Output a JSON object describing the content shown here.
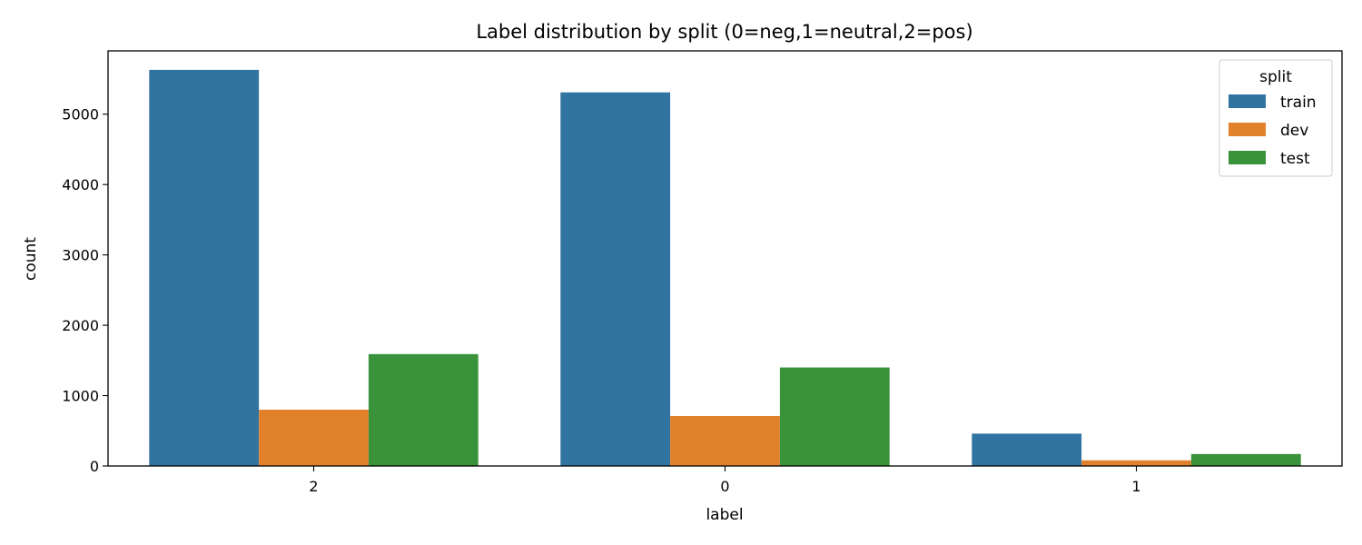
{
  "chart_data": {
    "type": "bar",
    "title": "Label distribution by split (0=neg,1=neutral,2=pos)",
    "xlabel": "label",
    "ylabel": "count",
    "categories": [
      "2",
      "0",
      "1"
    ],
    "ylim": [
      0,
      5900
    ],
    "yticks": [
      0,
      1000,
      2000,
      3000,
      4000,
      5000
    ],
    "legend_title": "split",
    "legend_position": "top-right",
    "series": [
      {
        "name": "train",
        "color": "#3274a1",
        "values": [
          5630,
          5310,
          460
        ]
      },
      {
        "name": "dev",
        "color": "#e1812c",
        "values": [
          800,
          710,
          80
        ]
      },
      {
        "name": "test",
        "color": "#3a923a",
        "values": [
          1590,
          1400,
          170
        ]
      }
    ]
  }
}
